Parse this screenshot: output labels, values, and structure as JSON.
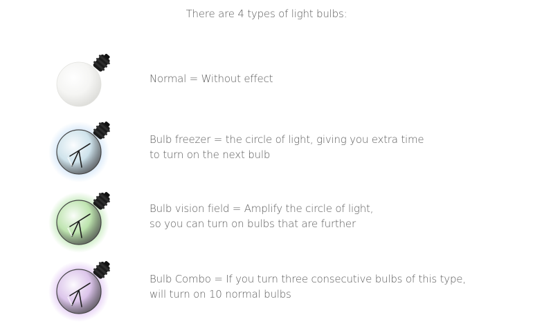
{
  "title": "There are 4 types of light bulbs:",
  "bulbs": [
    {
      "icon": "light-bulb-normal-icon",
      "glow": "#ffffff",
      "glass": "#f4f4f2",
      "lines": [
        "Normal  = Without effect"
      ]
    },
    {
      "icon": "light-bulb-freezer-icon",
      "glow": "#9fc8f0",
      "glass": "#cfe3ea",
      "lines": [
        "Bulb freezer  = the circle of light, giving you extra time",
        "to turn on the next bulb"
      ]
    },
    {
      "icon": "light-bulb-vision-field-icon",
      "glow": "#7fd06a",
      "glass": "#bfe4b0",
      "lines": [
        "Bulb vision field  = Amplify the circle of light,",
        "so you can turn on bulbs that are further"
      ]
    },
    {
      "icon": "light-bulb-combo-icon",
      "glow": "#c08ae6",
      "glass": "#dcc6ea",
      "lines": [
        "Bulb Combo = If you turn three consecutive bulbs of this type,",
        "will turn on 10 normal bulbs"
      ]
    }
  ]
}
